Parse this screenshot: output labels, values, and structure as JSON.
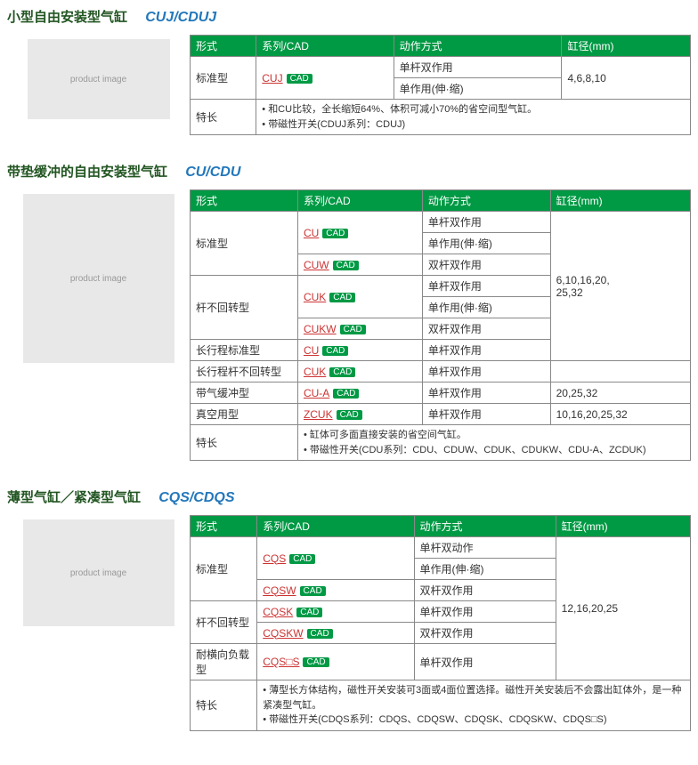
{
  "cadLabel": "CAD",
  "headers": {
    "col1": "形式",
    "col2": "系列/CAD",
    "col3": "动作方式",
    "col4": "缸径(mm)"
  },
  "section1": {
    "titleCn": "小型自由安装型气缸",
    "titleEn": "CUJ/CDUJ",
    "rows": {
      "r1c1": "标准型",
      "r1c2link": "CUJ",
      "r1c3a": "单杆双作用",
      "r1c3b": "单作用(伸·缩)",
      "r1c4": "4,6,8,10",
      "featLabel": "特长",
      "feat1": "和CU比较，全长缩短64%、体积可减小70%的省空间型气缸。",
      "feat2": "带磁性开关(CDUJ系列：CDUJ)"
    }
  },
  "section2": {
    "titleCn": "带垫缓冲的自由安装型气缸",
    "titleEn": "CU/CDU",
    "labels": {
      "std": "标准型",
      "nonrot": "杆不回转型",
      "longstd": "长行程标准型",
      "longnonrot": "长行程杆不回转型",
      "aircush": "带气缓冲型",
      "vacuum": "真空用型",
      "feat": "特长"
    },
    "links": {
      "cu": "CU",
      "cuw": "CUW",
      "cuk": "CUK",
      "cukw": "CUKW",
      "cua": "CU-A",
      "zcuk": "ZCUK"
    },
    "actions": {
      "single_double": "单杆双作用",
      "single_ext": "单作用(伸·缩)",
      "double_double": "双杆双作用"
    },
    "bores": {
      "main": "6,10,16,20,\n25,32",
      "aircush": "20,25,32",
      "vacuum": "10,16,20,25,32"
    },
    "feat1": "缸体可多面直接安装的省空间气缸。",
    "feat2": "带磁性开关(CDU系列：CDU、CDUW、CDUK、CDUKW、CDU-A、ZCDUK)"
  },
  "section3": {
    "titleCn": "薄型气缸／紧凑型气缸",
    "titleEn": "CQS/CDQS",
    "labels": {
      "std": "标准型",
      "nonrot": "杆不回转型",
      "lateral": "耐横向负载型",
      "feat": "特长"
    },
    "links": {
      "cqs": "CQS",
      "cqsw": "CQSW",
      "cqsk": "CQSK",
      "cqskw": "CQSKW",
      "cqss": "CQS□S"
    },
    "actions": {
      "single_double": "单杆双动作",
      "single_ext": "单作用(伸·缩)",
      "double_double": "双杆双作用",
      "single_double2": "单杆双作用"
    },
    "bore": "12,16,20,25",
    "feat1": "薄型长方体结构，磁性开关安装可3面或4面位置选择。磁性开关安装后不会露出缸体外，是一种紧凑型气缸。",
    "feat2": "带磁性开关(CDQS系列：CDQS、CDQSW、CDQSK、CDQSKW、CDQS□S)"
  }
}
